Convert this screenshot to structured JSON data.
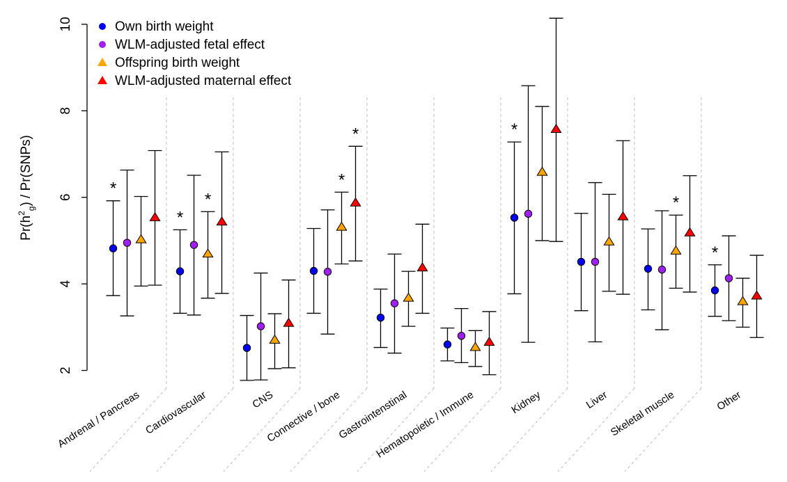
{
  "chart_data": {
    "type": "scatter",
    "subtype": "dot-plot-with-error-bars",
    "ylabel_main": "Pr(h",
    "ylabel_sup": "2",
    "ylabel_sub": "g",
    "ylabel_tail": ") / Pr(SNPs)",
    "ylim": [
      1.8,
      10.4
    ],
    "yticks": [
      2,
      4,
      6,
      8,
      10
    ],
    "grid": false,
    "legend_position": "top-left",
    "categories": [
      "Andrenal / Pancreas",
      "Cardiovascular",
      "CNS",
      "Connective / bone",
      "Gastrointenstinal",
      "Hematopoietic / Immune",
      "Kidney",
      "Liver",
      "Skeletal muscle",
      "Other"
    ],
    "series": [
      {
        "name": "Own birth weight",
        "color": "#0000ee",
        "marker": "circle",
        "values": [
          4.82,
          4.29,
          2.52,
          4.3,
          3.22,
          2.6,
          5.53,
          4.51,
          4.35,
          3.85
        ],
        "lower": [
          3.73,
          3.32,
          1.77,
          3.32,
          2.53,
          2.22,
          3.77,
          3.38,
          3.4,
          3.25
        ],
        "upper": [
          5.92,
          5.25,
          3.27,
          5.28,
          3.88,
          2.98,
          7.28,
          5.63,
          5.27,
          4.44
        ],
        "significant": [
          true,
          true,
          false,
          false,
          false,
          false,
          true,
          false,
          false,
          true
        ]
      },
      {
        "name": "WLM-adjusted fetal effect",
        "color": "#a020f0",
        "marker": "circle",
        "values": [
          4.95,
          4.9,
          3.02,
          4.28,
          3.55,
          2.8,
          5.62,
          4.51,
          4.33,
          4.13
        ],
        "lower": [
          3.26,
          3.28,
          1.78,
          2.84,
          2.4,
          2.18,
          2.65,
          2.66,
          2.94,
          3.15
        ],
        "upper": [
          6.63,
          6.51,
          4.25,
          5.71,
          4.69,
          3.43,
          8.58,
          6.34,
          5.69,
          5.11
        ],
        "significant": [
          false,
          false,
          false,
          false,
          false,
          false,
          false,
          false,
          false,
          false
        ]
      },
      {
        "name": "Offspring birth weight",
        "color": "#ffa500",
        "marker": "triangle",
        "values": [
          5.02,
          4.69,
          2.7,
          5.31,
          3.67,
          2.53,
          6.58,
          4.97,
          4.76,
          3.59
        ],
        "lower": [
          3.95,
          3.67,
          2.04,
          4.46,
          3.02,
          2.09,
          5.0,
          3.83,
          3.9,
          3.0
        ],
        "upper": [
          6.02,
          5.67,
          3.31,
          6.12,
          4.29,
          2.92,
          8.1,
          6.07,
          5.59,
          4.13
        ],
        "significant": [
          false,
          true,
          false,
          true,
          false,
          false,
          false,
          false,
          true,
          false
        ]
      },
      {
        "name": "WLM-adjusted maternal effect",
        "color": "#ff0000",
        "marker": "triangle",
        "values": [
          5.53,
          5.43,
          3.09,
          5.87,
          4.37,
          2.65,
          7.57,
          5.55,
          5.18,
          3.72
        ],
        "lower": [
          3.97,
          3.78,
          2.06,
          4.53,
          3.32,
          1.9,
          4.98,
          3.76,
          3.81,
          2.76
        ],
        "upper": [
          7.08,
          7.05,
          4.09,
          7.18,
          5.38,
          3.36,
          10.14,
          7.31,
          6.5,
          4.66
        ],
        "significant": [
          false,
          false,
          false,
          true,
          false,
          false,
          false,
          false,
          false,
          false
        ]
      }
    ]
  }
}
